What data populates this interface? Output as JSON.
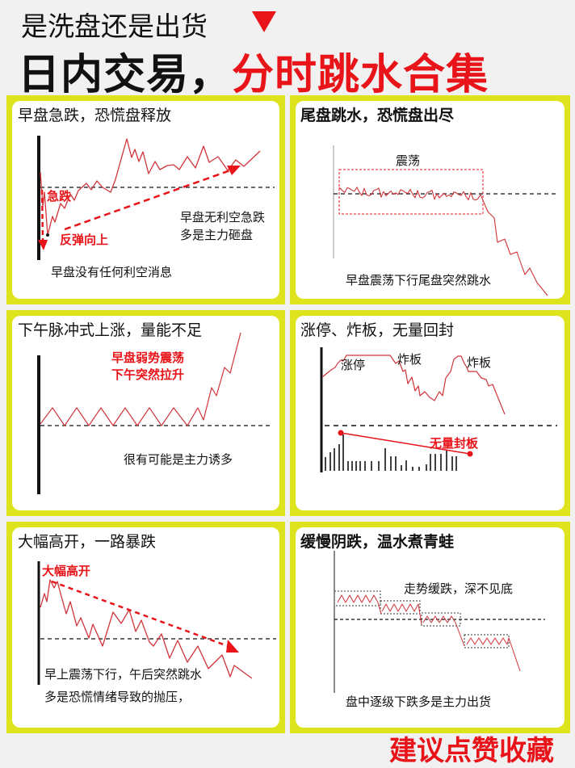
{
  "header": {
    "subtitle": "是洗盘还是出货",
    "title_black": "日内交易，",
    "title_red": "分时跳水合集",
    "arrow_icon": "red-down-triangle"
  },
  "colors": {
    "accent": "#e8141a",
    "border": "#dde31c",
    "line": "#d0343a"
  },
  "panels": [
    {
      "title": "早盘急跌，恐慌盘释放",
      "labels": {
        "drop": "急跌",
        "rebound": "反弹向上"
      },
      "notes": [
        "早盘无利空急跌",
        "多是主力砸盘",
        "早盘没有任何利空消息"
      ]
    },
    {
      "title": "尾盘跳水，恐慌盘出尽",
      "labels": {
        "range": "震荡"
      },
      "notes": [
        "早盘震荡下行尾盘突然跳水"
      ]
    },
    {
      "title": "下午脉冲式上涨，量能不足",
      "labels": {
        "red1": "早盘弱势震荡",
        "red2": "下午突然拉升"
      },
      "notes": [
        "很有可能是主力诱多"
      ]
    },
    {
      "title": "涨停、炸板，无量回封",
      "labels": {
        "limit_up": "涨停",
        "break1": "炸板",
        "break2": "炸板",
        "no_volume": "无量封板"
      }
    },
    {
      "title": "大幅高开，一路暴跌",
      "labels": {
        "gap_up": "大幅高开"
      },
      "notes": [
        "早上震荡下行，午后突然跳水",
        "多是恐慌情绪导致的抛压，"
      ]
    },
    {
      "title": "缓慢阴跌，温水煮青蛙",
      "notes": [
        "走势缓跌，深不见底",
        "盘中逐级下跌多是主力出货"
      ]
    }
  ],
  "footer": "建议点赞收藏"
}
